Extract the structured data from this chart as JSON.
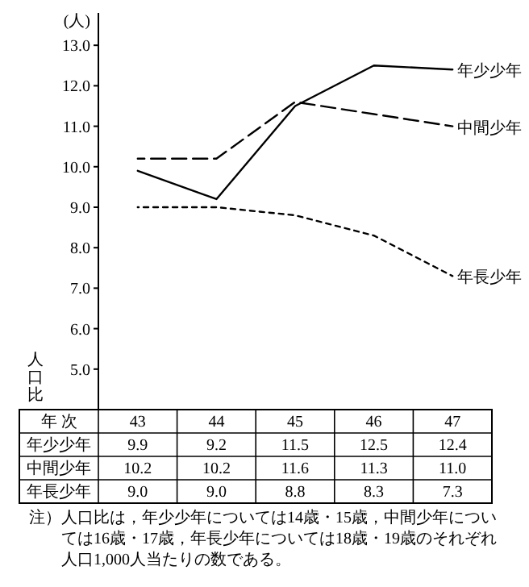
{
  "chart_data": {
    "type": "line",
    "ylabel": "人口比",
    "xlabel": "年 次",
    "categories": [
      "43",
      "44",
      "45",
      "46",
      "47"
    ],
    "ylim": [
      4.0,
      13.8
    ],
    "yticks": [
      {
        "value": 5,
        "label": "5.0"
      },
      {
        "value": 6,
        "label": "6.0"
      },
      {
        "value": 7,
        "label": "7.0"
      },
      {
        "value": 8,
        "label": "8.0"
      },
      {
        "value": 9,
        "label": "9.0"
      },
      {
        "value": 10,
        "label": "10.0"
      },
      {
        "value": 11,
        "label": "11.0"
      },
      {
        "value": 12,
        "label": "12.0"
      },
      {
        "value": 13,
        "label": "13.0"
      }
    ],
    "series": [
      {
        "name": "年少少年",
        "color": "#000000",
        "line_style": "solid",
        "values": [
          9.9,
          9.2,
          11.5,
          12.5,
          12.4
        ],
        "value_labels": [
          "9.9",
          "9.2",
          "11.5",
          "12.5",
          "12.4"
        ]
      },
      {
        "name": "中間少年",
        "color": "#000000",
        "line_style": "dashed",
        "values": [
          10.2,
          10.2,
          11.6,
          11.3,
          11.0
        ],
        "value_labels": [
          "10.2",
          "10.2",
          "11.6",
          "11.3",
          "11.0"
        ]
      },
      {
        "name": "年長少年",
        "color": "#000000",
        "line_style": "dotted",
        "values": [
          9.0,
          9.0,
          8.8,
          8.3,
          7.3
        ],
        "value_labels": [
          "9.0",
          "9.0",
          "8.8",
          "8.3",
          "7.3"
        ]
      }
    ],
    "grid": false,
    "legend": false,
    "marker": "none",
    "annotations": [
      "(人)",
      "注）人口比は，年少少年については14歳・15歳，中間少年については16歳・17歳，年長少年については18歳・19歳のそれぞれ人口1,000人当たりの数である。"
    ]
  }
}
